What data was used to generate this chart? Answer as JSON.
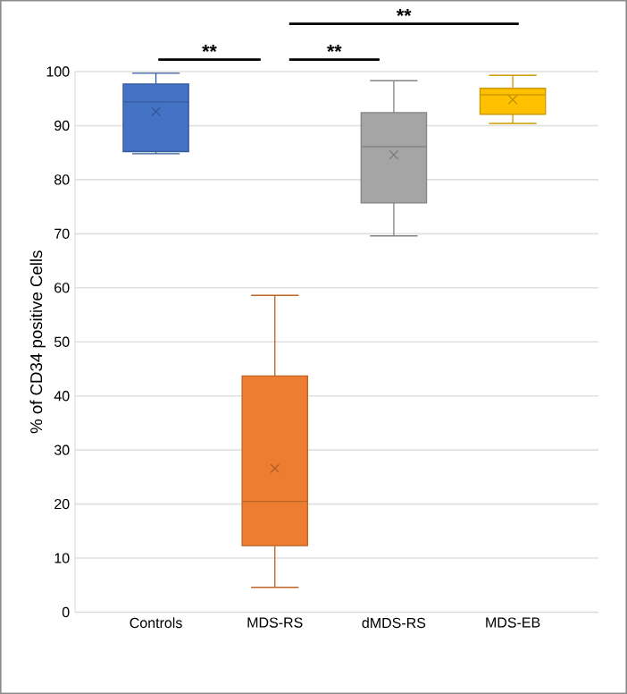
{
  "chart_data": {
    "type": "box",
    "ylabel": "% of CD34 positive Cells",
    "categories": [
      "Controls",
      "MDS-RS",
      "dMDS-RS",
      "MDS-EB"
    ],
    "colors": [
      "#4472c4",
      "#ed7d31",
      "#a5a5a5",
      "#ffc000"
    ],
    "boxes": [
      {
        "low": 84.8,
        "q1": 85.2,
        "median": 94.4,
        "q3": 97.7,
        "high": 99.7,
        "mean": 92.6
      },
      {
        "low": 4.6,
        "q1": 12.3,
        "median": 20.5,
        "q3": 43.7,
        "high": 58.6,
        "mean": 26.6
      },
      {
        "low": 69.6,
        "q1": 75.7,
        "median": 86.1,
        "q3": 92.4,
        "high": 98.3,
        "mean": 84.6
      },
      {
        "low": 90.4,
        "q1": 92.1,
        "median": 95.7,
        "q3": 96.9,
        "high": 99.3,
        "mean": 94.8
      }
    ],
    "ylim": [
      0,
      100
    ],
    "yticks": [
      0,
      10,
      20,
      30,
      40,
      50,
      60,
      70,
      80,
      90,
      100
    ],
    "grid": "y",
    "annotations": [
      "**",
      "**",
      "**"
    ]
  }
}
